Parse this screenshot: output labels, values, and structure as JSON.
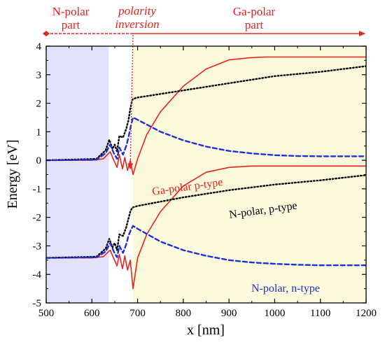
{
  "chart_data": {
    "type": "line",
    "xlabel": "x [nm]",
    "ylabel": "Energy [eV]",
    "xlim": [
      500,
      1200
    ],
    "ylim": [
      -5,
      4
    ],
    "xticks": [
      500,
      600,
      700,
      800,
      900,
      1000,
      1100,
      1200
    ],
    "yticks": [
      4,
      3,
      2,
      1,
      0,
      -1,
      -2,
      -3,
      -4,
      -5
    ],
    "grid": false,
    "colors": {
      "ga_polar": "#e8231f",
      "n_polar_p": "#000000",
      "n_polar_n": "#1f2fd6",
      "n_region_shade": "#e2e2fa",
      "ga_region_shade": "#fbf9dc"
    },
    "regions": [
      {
        "key": "n_polar",
        "from": 500,
        "to": 637
      },
      {
        "key": "ga_polar",
        "from": 690,
        "to": 1200
      }
    ],
    "region_labels": {
      "n_polar": [
        "N-polar",
        "part"
      ],
      "inversion": [
        "polarity",
        "inversion"
      ],
      "ga_polar": [
        "Ga-polar",
        "part"
      ]
    },
    "annotations": {
      "ga_polar_p": "Ga-polar p-type",
      "n_polar_p": "N-polar, p-type",
      "n_polar_n": "N-polar, n-type"
    },
    "series": [
      {
        "key": "ga_polar_p_upper",
        "style": "solid",
        "x": [
          500,
          600,
          625,
          640,
          648,
          655,
          660,
          667,
          672,
          678,
          684,
          690,
          700,
          720,
          750,
          800,
          850,
          900,
          950,
          980,
          1000,
          1100,
          1200
        ],
        "y": [
          0.0,
          0.0,
          0.05,
          0.3,
          0.0,
          -0.25,
          0.2,
          -0.3,
          0.1,
          -0.35,
          0.0,
          -0.5,
          0.05,
          0.9,
          1.7,
          2.6,
          3.2,
          3.52,
          3.6,
          3.62,
          3.62,
          3.62,
          3.62
        ]
      },
      {
        "key": "ga_polar_p_lower",
        "style": "solid",
        "x": [
          500,
          600,
          625,
          640,
          648,
          655,
          660,
          667,
          672,
          678,
          684,
          690,
          700,
          720,
          750,
          800,
          850,
          900,
          950,
          980,
          1000,
          1100,
          1200
        ],
        "y": [
          -3.42,
          -3.42,
          -3.38,
          -3.15,
          -3.45,
          -3.7,
          -3.3,
          -3.8,
          -3.35,
          -3.85,
          -3.5,
          -4.5,
          -3.42,
          -2.6,
          -1.8,
          -0.9,
          -0.42,
          -0.25,
          -0.2,
          -0.2,
          -0.2,
          -0.2,
          -0.2
        ]
      },
      {
        "key": "n_polar_p_upper",
        "style": "dotted",
        "x": [
          500,
          610,
          630,
          638,
          645,
          650,
          655,
          660,
          668,
          675,
          680,
          684,
          688,
          690,
          700,
          800,
          900,
          1000,
          1100,
          1200
        ],
        "y": [
          0.0,
          0.05,
          0.35,
          0.72,
          0.4,
          0.55,
          0.3,
          0.85,
          0.8,
          1.1,
          1.4,
          1.8,
          2.1,
          2.15,
          2.2,
          2.45,
          2.7,
          2.95,
          3.1,
          3.3
        ]
      },
      {
        "key": "n_polar_p_lower",
        "style": "dotted",
        "x": [
          500,
          610,
          630,
          638,
          645,
          650,
          655,
          660,
          668,
          675,
          680,
          684,
          688,
          690,
          700,
          800,
          900,
          1000,
          1100,
          1200
        ],
        "y": [
          -3.42,
          -3.38,
          -3.1,
          -2.75,
          -3.05,
          -2.9,
          -3.15,
          -2.6,
          -2.65,
          -2.35,
          -2.05,
          -1.8,
          -1.67,
          -1.65,
          -1.6,
          -1.3,
          -1.05,
          -0.85,
          -0.7,
          -0.52
        ]
      },
      {
        "key": "n_polar_n_upper",
        "style": "dashed",
        "x": [
          500,
          610,
          630,
          640,
          648,
          655,
          660,
          668,
          675,
          680,
          685,
          690,
          700,
          750,
          800,
          850,
          900,
          950,
          1000,
          1050,
          1100,
          1150,
          1200
        ],
        "y": [
          0.0,
          0.02,
          0.25,
          0.55,
          0.25,
          0.05,
          0.45,
          0.2,
          0.5,
          0.8,
          1.2,
          1.5,
          1.42,
          1.0,
          0.7,
          0.48,
          0.33,
          0.24,
          0.18,
          0.15,
          0.14,
          0.14,
          0.14
        ]
      },
      {
        "key": "n_polar_n_lower",
        "style": "dashed",
        "x": [
          500,
          610,
          630,
          640,
          648,
          655,
          660,
          668,
          675,
          680,
          685,
          690,
          700,
          750,
          800,
          850,
          900,
          950,
          1000,
          1050,
          1100,
          1150,
          1200
        ],
        "y": [
          -3.42,
          -3.4,
          -3.2,
          -2.9,
          -3.2,
          -3.4,
          -3.0,
          -3.25,
          -2.95,
          -2.65,
          -2.45,
          -2.3,
          -2.4,
          -2.85,
          -3.15,
          -3.35,
          -3.5,
          -3.58,
          -3.63,
          -3.66,
          -3.68,
          -3.68,
          -3.68
        ]
      }
    ]
  }
}
